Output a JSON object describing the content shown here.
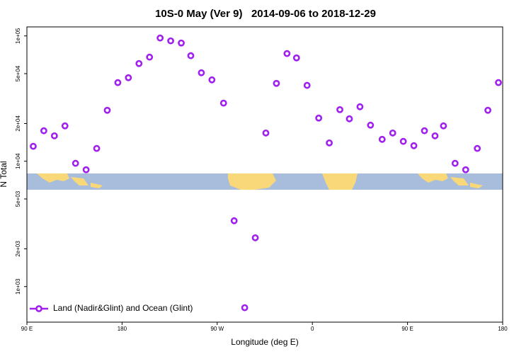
{
  "chart_data": {
    "type": "scatter",
    "title": "10S-0 May (Ver 9)   2014-09-06 to 2018-12-29",
    "xlabel": "Longitude (deg E)",
    "ylabel": "N Total",
    "xlim": [
      90,
      540
    ],
    "xticks": [
      {
        "value": 90,
        "label": "90 E"
      },
      {
        "value": 180,
        "label": "180"
      },
      {
        "value": 270,
        "label": "90 W"
      },
      {
        "value": 360,
        "label": "0"
      },
      {
        "value": 450,
        "label": "90 E"
      },
      {
        "value": 540,
        "label": "180"
      }
    ],
    "ylim": [
      520,
      118000
    ],
    "yscale": "log",
    "yticks": [
      {
        "value": 1000,
        "label": "1e+03"
      },
      {
        "value": 2000,
        "label": "2e+03"
      },
      {
        "value": 5000,
        "label": "5e+03"
      },
      {
        "value": 10000,
        "label": "1e+04"
      },
      {
        "value": 20000,
        "label": "2e+04"
      },
      {
        "value": 50000,
        "label": "5e+04"
      },
      {
        "value": 100000,
        "label": "1e+05"
      }
    ],
    "legend": "bottom-left",
    "series": [
      {
        "name": "Land (Nadir&Glint) and Ocean (Glint)",
        "color": "#a020f0",
        "x": [
          96,
          106,
          116,
          126,
          136,
          146,
          156,
          166,
          176,
          186,
          196,
          206,
          216,
          226,
          236,
          245,
          255,
          265,
          276,
          286,
          296,
          306,
          316,
          326,
          336,
          345,
          355,
          366,
          376,
          386,
          395,
          405,
          415,
          426,
          436,
          446,
          456,
          466,
          476,
          484,
          495,
          505,
          516,
          526,
          536
        ],
        "values": [
          13150,
          17500,
          15950,
          19150,
          9620,
          8550,
          12650,
          25500,
          42400,
          46400,
          60200,
          67700,
          96200,
          91300,
          87800,
          69500,
          50800,
          44600,
          29100,
          3350,
          678,
          2450,
          16800,
          41800,
          72300,
          66800,
          40300,
          22100,
          14000,
          25800,
          21800,
          27200,
          19400,
          14950,
          16800,
          14400,
          13300,
          17500,
          15950,
          19150,
          9620,
          8550,
          12650,
          25500,
          42400
        ]
      }
    ]
  }
}
